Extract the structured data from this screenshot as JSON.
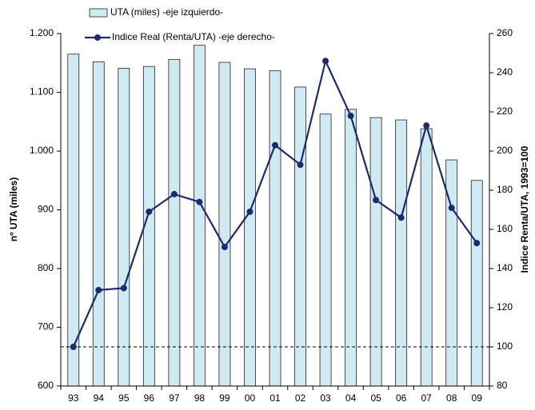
{
  "chart_data": {
    "type": "bar_line",
    "y_label": "nº UTA (miles)",
    "y2_label": "Indice Renta/UTA, 1993=100",
    "categories": [
      "93",
      "94",
      "95",
      "96",
      "97",
      "98",
      "99",
      "00",
      "01",
      "02",
      "03",
      "04",
      "05",
      "06",
      "07",
      "08",
      "09"
    ],
    "series": [
      {
        "name": "UTA (miles) -eje izquierdo-",
        "type": "bar",
        "color": "#cfeaf2",
        "values": [
          1165,
          1152,
          1141,
          1144,
          1156,
          1180,
          1151,
          1140,
          1137,
          1109,
          1063,
          1071,
          1057,
          1053,
          1038,
          985,
          950
        ]
      },
      {
        "name": "Indice Real (Renta/UTA) -eje derecho-",
        "type": "line",
        "axis": "y2",
        "color": "#1f2a6e",
        "values": [
          100,
          129,
          130,
          169,
          178,
          174,
          151,
          169,
          203,
          193,
          246,
          218,
          175,
          166,
          213,
          171,
          153
        ]
      }
    ],
    "ylim": [
      600,
      1200
    ],
    "yticks": [
      600,
      700,
      800,
      900,
      {
        "value": 1000,
        "label": "1.000"
      },
      {
        "value": 1100,
        "label": "1.100"
      },
      {
        "value": 1200,
        "label": "1.200"
      }
    ],
    "y2lim": [
      80,
      260
    ],
    "y2ticks": [
      80,
      100,
      120,
      140,
      160,
      180,
      200,
      220,
      240,
      260
    ],
    "hline_y2": 100
  }
}
